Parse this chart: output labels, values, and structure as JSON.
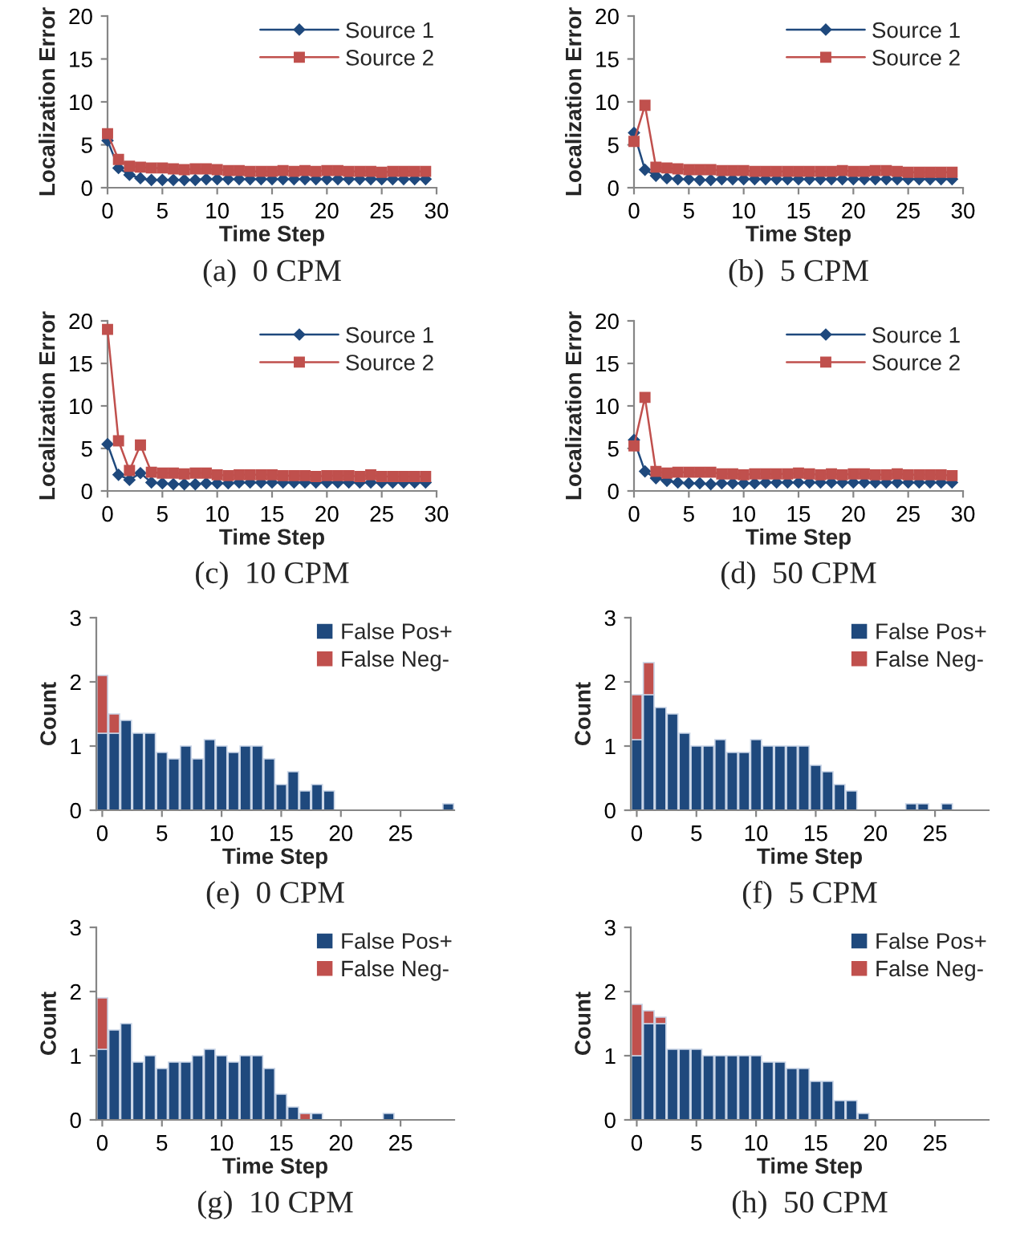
{
  "chart_data": [
    {
      "type": "line",
      "title": "(a)  0 CPM",
      "xlabel": "Time Step",
      "ylabel": "Localization Error",
      "x": [
        0,
        1,
        2,
        3,
        4,
        5,
        6,
        7,
        8,
        9,
        10,
        11,
        12,
        13,
        14,
        15,
        16,
        17,
        18,
        19,
        20,
        21,
        22,
        23,
        24,
        25,
        26,
        27,
        28,
        29
      ],
      "xlim": [
        0,
        30
      ],
      "xticks": [
        0,
        5,
        10,
        15,
        20,
        25,
        30
      ],
      "ylim": [
        0,
        20
      ],
      "yticks": [
        0,
        5,
        10,
        15,
        20
      ],
      "legend": "top right",
      "grid": false,
      "line_style": "solid",
      "series": [
        {
          "name": "Source 1",
          "color": "#1f497d",
          "marker": "diamond",
          "values": [
            5.5,
            2.3,
            1.5,
            1.1,
            0.9,
            0.9,
            0.9,
            0.9,
            0.9,
            1.0,
            1.0,
            1.0,
            1.0,
            1.0,
            1.0,
            1.0,
            1.0,
            1.0,
            1.0,
            1.0,
            1.0,
            1.0,
            1.0,
            1.0,
            1.0,
            1.0,
            1.0,
            1.0,
            1.0,
            1.0
          ]
        },
        {
          "name": "Source 2",
          "color": "#c0504d",
          "marker": "square",
          "values": [
            6.3,
            3.3,
            2.5,
            2.4,
            2.3,
            2.3,
            2.2,
            2.1,
            2.2,
            2.2,
            2.1,
            2.0,
            2.0,
            1.9,
            1.9,
            1.9,
            2.0,
            1.9,
            2.0,
            1.9,
            2.0,
            2.0,
            1.9,
            1.9,
            1.9,
            1.8,
            1.9,
            1.9,
            1.9,
            1.9
          ]
        }
      ]
    },
    {
      "type": "line",
      "title": "(b)  5 CPM",
      "xlabel": "Time Step",
      "ylabel": "Localization Error",
      "x": [
        0,
        1,
        2,
        3,
        4,
        5,
        6,
        7,
        8,
        9,
        10,
        11,
        12,
        13,
        14,
        15,
        16,
        17,
        18,
        19,
        20,
        21,
        22,
        23,
        24,
        25,
        26,
        27,
        28,
        29
      ],
      "xlim": [
        0,
        30
      ],
      "xticks": [
        0,
        5,
        10,
        15,
        20,
        25,
        30
      ],
      "ylim": [
        0,
        20
      ],
      "yticks": [
        0,
        5,
        10,
        15,
        20
      ],
      "legend": "top right",
      "grid": false,
      "line_style": "solid",
      "series": [
        {
          "name": "Source 1",
          "color": "#1f497d",
          "marker": "diamond",
          "values": [
            6.4,
            2.1,
            1.4,
            1.1,
            1.0,
            1.0,
            0.9,
            0.9,
            1.0,
            1.0,
            1.0,
            1.0,
            1.0,
            1.0,
            1.0,
            1.0,
            1.0,
            1.0,
            1.0,
            1.0,
            1.0,
            1.0,
            1.0,
            1.0,
            1.0,
            1.0,
            1.0,
            1.0,
            1.0,
            1.0
          ]
        },
        {
          "name": "Source 2",
          "color": "#c0504d",
          "marker": "square",
          "values": [
            5.4,
            9.6,
            2.4,
            2.3,
            2.2,
            2.1,
            2.1,
            2.1,
            2.0,
            2.0,
            2.0,
            1.9,
            1.9,
            1.9,
            1.9,
            1.9,
            1.9,
            1.9,
            1.9,
            2.0,
            1.9,
            1.9,
            2.0,
            2.0,
            1.9,
            1.8,
            1.8,
            1.8,
            1.8,
            1.8
          ]
        }
      ]
    },
    {
      "type": "line",
      "title": "(c)  10 CPM",
      "xlabel": "Time Step",
      "ylabel": "Localization Error",
      "x": [
        0,
        1,
        2,
        3,
        4,
        5,
        6,
        7,
        8,
        9,
        10,
        11,
        12,
        13,
        14,
        15,
        16,
        17,
        18,
        19,
        20,
        21,
        22,
        23,
        24,
        25,
        26,
        27,
        28,
        29
      ],
      "xlim": [
        0,
        30
      ],
      "xticks": [
        0,
        5,
        10,
        15,
        20,
        25,
        30
      ],
      "ylim": [
        0,
        20
      ],
      "yticks": [
        0,
        5,
        10,
        15,
        20
      ],
      "legend": "top right",
      "grid": false,
      "line_style": "solid",
      "series": [
        {
          "name": "Source 1",
          "color": "#1f497d",
          "marker": "diamond",
          "values": [
            5.5,
            1.9,
            1.3,
            2.1,
            1.0,
            0.9,
            0.8,
            0.8,
            0.8,
            0.9,
            0.9,
            0.9,
            1.0,
            1.0,
            1.0,
            1.0,
            1.0,
            1.0,
            1.0,
            1.0,
            1.0,
            1.0,
            1.0,
            1.0,
            1.0,
            1.0,
            1.0,
            1.0,
            1.0,
            1.0
          ]
        },
        {
          "name": "Source 2",
          "color": "#c0504d",
          "marker": "square",
          "values": [
            19.0,
            5.9,
            2.4,
            5.4,
            2.2,
            2.1,
            2.1,
            2.0,
            2.1,
            2.1,
            1.9,
            1.8,
            1.9,
            1.9,
            1.9,
            1.9,
            1.8,
            1.8,
            1.8,
            1.7,
            1.8,
            1.8,
            1.8,
            1.7,
            1.9,
            1.7,
            1.7,
            1.7,
            1.7,
            1.7
          ]
        }
      ]
    },
    {
      "type": "line",
      "title": "(d)  50 CPM",
      "xlabel": "Time Step",
      "ylabel": "Localization Error",
      "x": [
        0,
        1,
        2,
        3,
        4,
        5,
        6,
        7,
        8,
        9,
        10,
        11,
        12,
        13,
        14,
        15,
        16,
        17,
        18,
        19,
        20,
        21,
        22,
        23,
        24,
        25,
        26,
        27,
        28,
        29
      ],
      "xlim": [
        0,
        30
      ],
      "xticks": [
        0,
        5,
        10,
        15,
        20,
        25,
        30
      ],
      "ylim": [
        0,
        20
      ],
      "yticks": [
        0,
        5,
        10,
        15,
        20
      ],
      "legend": "top right",
      "grid": false,
      "line_style": "solid",
      "series": [
        {
          "name": "Source 1",
          "color": "#1f497d",
          "marker": "diamond",
          "values": [
            6.0,
            2.3,
            1.5,
            1.2,
            1.0,
            0.9,
            0.9,
            0.8,
            0.9,
            0.9,
            0.9,
            0.9,
            1.0,
            1.0,
            1.0,
            1.0,
            1.0,
            1.0,
            1.0,
            1.0,
            1.0,
            1.0,
            1.0,
            1.0,
            1.0,
            1.0,
            1.0,
            1.0,
            1.0,
            1.0
          ]
        },
        {
          "name": "Source 2",
          "color": "#c0504d",
          "marker": "square",
          "values": [
            5.3,
            11.0,
            2.3,
            2.1,
            2.2,
            2.2,
            2.2,
            2.2,
            2.0,
            2.0,
            1.9,
            2.0,
            2.0,
            2.0,
            2.0,
            2.1,
            2.0,
            1.9,
            2.0,
            1.9,
            2.0,
            2.0,
            1.9,
            1.9,
            2.0,
            1.9,
            1.9,
            1.9,
            1.9,
            1.8
          ]
        }
      ]
    },
    {
      "type": "bar",
      "stacked": true,
      "title": "(e)  0 CPM",
      "xlabel": "Time Step",
      "ylabel": "Count",
      "x": [
        0,
        1,
        2,
        3,
        4,
        5,
        6,
        7,
        8,
        9,
        10,
        11,
        12,
        13,
        14,
        15,
        16,
        17,
        18,
        19,
        20,
        21,
        22,
        23,
        24,
        25,
        26,
        27,
        28,
        29
      ],
      "xlim": [
        -0.5,
        29.5
      ],
      "xticks": [
        0,
        5,
        10,
        15,
        20,
        25
      ],
      "ylim": [
        0,
        3
      ],
      "yticks": [
        0,
        1,
        2,
        3
      ],
      "legend": "top right",
      "grid": false,
      "series": [
        {
          "name": "False Pos+",
          "color": "#1f497d",
          "values": [
            1.2,
            1.2,
            1.4,
            1.2,
            1.2,
            0.9,
            0.8,
            1.0,
            0.8,
            1.1,
            1.0,
            0.9,
            1.0,
            1.0,
            0.8,
            0.4,
            0.6,
            0.3,
            0.4,
            0.3,
            0,
            0,
            0,
            0,
            0,
            0,
            0,
            0,
            0,
            0.1
          ]
        },
        {
          "name": "False Neg-",
          "color": "#c0504d",
          "values": [
            0.9,
            0.3,
            0,
            0,
            0,
            0,
            0,
            0,
            0,
            0,
            0,
            0,
            0,
            0,
            0,
            0,
            0,
            0,
            0,
            0,
            0,
            0,
            0,
            0,
            0,
            0,
            0,
            0,
            0,
            0
          ]
        }
      ]
    },
    {
      "type": "bar",
      "stacked": true,
      "title": "(f)  5 CPM",
      "xlabel": "Time Step",
      "ylabel": "Count",
      "x": [
        0,
        1,
        2,
        3,
        4,
        5,
        6,
        7,
        8,
        9,
        10,
        11,
        12,
        13,
        14,
        15,
        16,
        17,
        18,
        19,
        20,
        21,
        22,
        23,
        24,
        25,
        26,
        27,
        28,
        29
      ],
      "xlim": [
        -0.5,
        29.5
      ],
      "xticks": [
        0,
        5,
        10,
        15,
        20,
        25
      ],
      "ylim": [
        0,
        3
      ],
      "yticks": [
        0,
        1,
        2,
        3
      ],
      "legend": "top right",
      "grid": false,
      "series": [
        {
          "name": "False Pos+",
          "color": "#1f497d",
          "values": [
            1.1,
            1.8,
            1.6,
            1.5,
            1.2,
            1.0,
            1.0,
            1.1,
            0.9,
            0.9,
            1.1,
            1.0,
            1.0,
            1.0,
            1.0,
            0.7,
            0.6,
            0.4,
            0.3,
            0,
            0,
            0,
            0,
            0.1,
            0.1,
            0,
            0.1,
            0,
            0,
            0
          ]
        },
        {
          "name": "False Neg-",
          "color": "#c0504d",
          "values": [
            0.7,
            0.5,
            0,
            0,
            0,
            0,
            0,
            0,
            0,
            0,
            0,
            0,
            0,
            0,
            0,
            0,
            0,
            0,
            0,
            0,
            0,
            0,
            0,
            0,
            0,
            0,
            0,
            0,
            0,
            0
          ]
        }
      ]
    },
    {
      "type": "bar",
      "stacked": true,
      "title": "(g)  10 CPM",
      "xlabel": "Time Step",
      "ylabel": "Count",
      "x": [
        0,
        1,
        2,
        3,
        4,
        5,
        6,
        7,
        8,
        9,
        10,
        11,
        12,
        13,
        14,
        15,
        16,
        17,
        18,
        19,
        20,
        21,
        22,
        23,
        24,
        25,
        26,
        27,
        28,
        29
      ],
      "xlim": [
        -0.5,
        29.5
      ],
      "xticks": [
        0,
        5,
        10,
        15,
        20,
        25
      ],
      "ylim": [
        0,
        3
      ],
      "yticks": [
        0,
        1,
        2,
        3
      ],
      "legend": "top right",
      "grid": false,
      "series": [
        {
          "name": "False Pos+",
          "color": "#1f497d",
          "values": [
            1.1,
            1.4,
            1.5,
            0.9,
            1.0,
            0.8,
            0.9,
            0.9,
            1.0,
            1.1,
            1.0,
            0.9,
            1.0,
            1.0,
            0.8,
            0.4,
            0.2,
            0,
            0.1,
            0,
            0,
            0,
            0,
            0,
            0.1,
            0,
            0,
            0,
            0,
            0
          ]
        },
        {
          "name": "False Neg-",
          "color": "#c0504d",
          "values": [
            0.8,
            0,
            0,
            0,
            0,
            0,
            0,
            0,
            0,
            0,
            0,
            0,
            0,
            0,
            0,
            0,
            0,
            0.1,
            0,
            0,
            0,
            0,
            0,
            0,
            0,
            0,
            0,
            0,
            0,
            0
          ]
        }
      ]
    },
    {
      "type": "bar",
      "stacked": true,
      "title": "(h)  50 CPM",
      "xlabel": "Time Step",
      "ylabel": "Count",
      "x": [
        0,
        1,
        2,
        3,
        4,
        5,
        6,
        7,
        8,
        9,
        10,
        11,
        12,
        13,
        14,
        15,
        16,
        17,
        18,
        19,
        20,
        21,
        22,
        23,
        24,
        25,
        26,
        27,
        28,
        29
      ],
      "xlim": [
        -0.5,
        29.5
      ],
      "xticks": [
        0,
        5,
        10,
        15,
        20,
        25
      ],
      "ylim": [
        0,
        3
      ],
      "yticks": [
        0,
        1,
        2,
        3
      ],
      "legend": "top right",
      "grid": false,
      "series": [
        {
          "name": "False Pos+",
          "color": "#1f497d",
          "values": [
            1.0,
            1.5,
            1.5,
            1.1,
            1.1,
            1.1,
            1.0,
            1.0,
            1.0,
            1.0,
            1.0,
            0.9,
            0.9,
            0.8,
            0.8,
            0.6,
            0.6,
            0.3,
            0.3,
            0.1,
            0,
            0,
            0,
            0,
            0,
            0,
            0,
            0,
            0,
            0
          ]
        },
        {
          "name": "False Neg-",
          "color": "#c0504d",
          "values": [
            0.8,
            0.2,
            0.1,
            0,
            0,
            0,
            0,
            0,
            0,
            0,
            0,
            0,
            0,
            0,
            0,
            0,
            0,
            0,
            0,
            0,
            0,
            0,
            0,
            0,
            0,
            0,
            0,
            0,
            0,
            0
          ]
        }
      ]
    }
  ]
}
